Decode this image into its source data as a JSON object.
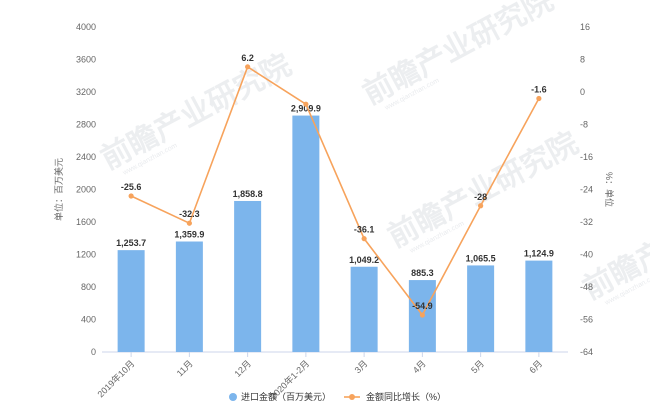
{
  "chart_data": {
    "type": "bar",
    "categories": [
      "2019年10月",
      "11月",
      "12月",
      "2020年1-2月",
      "3月",
      "4月",
      "5月",
      "6月"
    ],
    "series": [
      {
        "name": "进口金额（百万美元）",
        "type": "bar",
        "axis": "left",
        "color": "#7cb5ec",
        "values": [
          1253.7,
          1359.9,
          1858.8,
          2909.9,
          1049.2,
          885.3,
          1065.5,
          1124.9
        ],
        "labels": [
          "1,253.7",
          "1,359.9",
          "1,858.8",
          "2,909.9",
          "1,049.2",
          "885.3",
          "1,065.5",
          "1,124.9"
        ]
      },
      {
        "name": "金额同比增长（%）",
        "type": "line",
        "axis": "right",
        "color": "#f7a35c",
        "values": [
          -25.6,
          -32.3,
          6.2,
          -3.0,
          -36.1,
          -54.9,
          -28,
          -1.6
        ],
        "labels": [
          "-25.6",
          "-32.3",
          "6.2",
          "",
          "-36.1",
          "-54.9",
          "-28",
          "-1.6"
        ]
      }
    ],
    "ylabel_left": "单位：百万美元",
    "ylabel_right": "%：单位",
    "ylim_left": [
      0,
      4000
    ],
    "yticks_left": [
      0,
      400,
      800,
      1200,
      1600,
      2000,
      2400,
      2800,
      3200,
      3600,
      4000
    ],
    "ylim_right": [
      -64,
      16
    ],
    "yticks_right": [
      -64,
      -56,
      -48,
      -40,
      -32,
      -24,
      -16,
      -8,
      0,
      8,
      16
    ],
    "grid": false,
    "legend_position": "bottom"
  },
  "watermark": {
    "text": "前瞻产业研究院",
    "subtext": "www.qianzhan.com"
  }
}
